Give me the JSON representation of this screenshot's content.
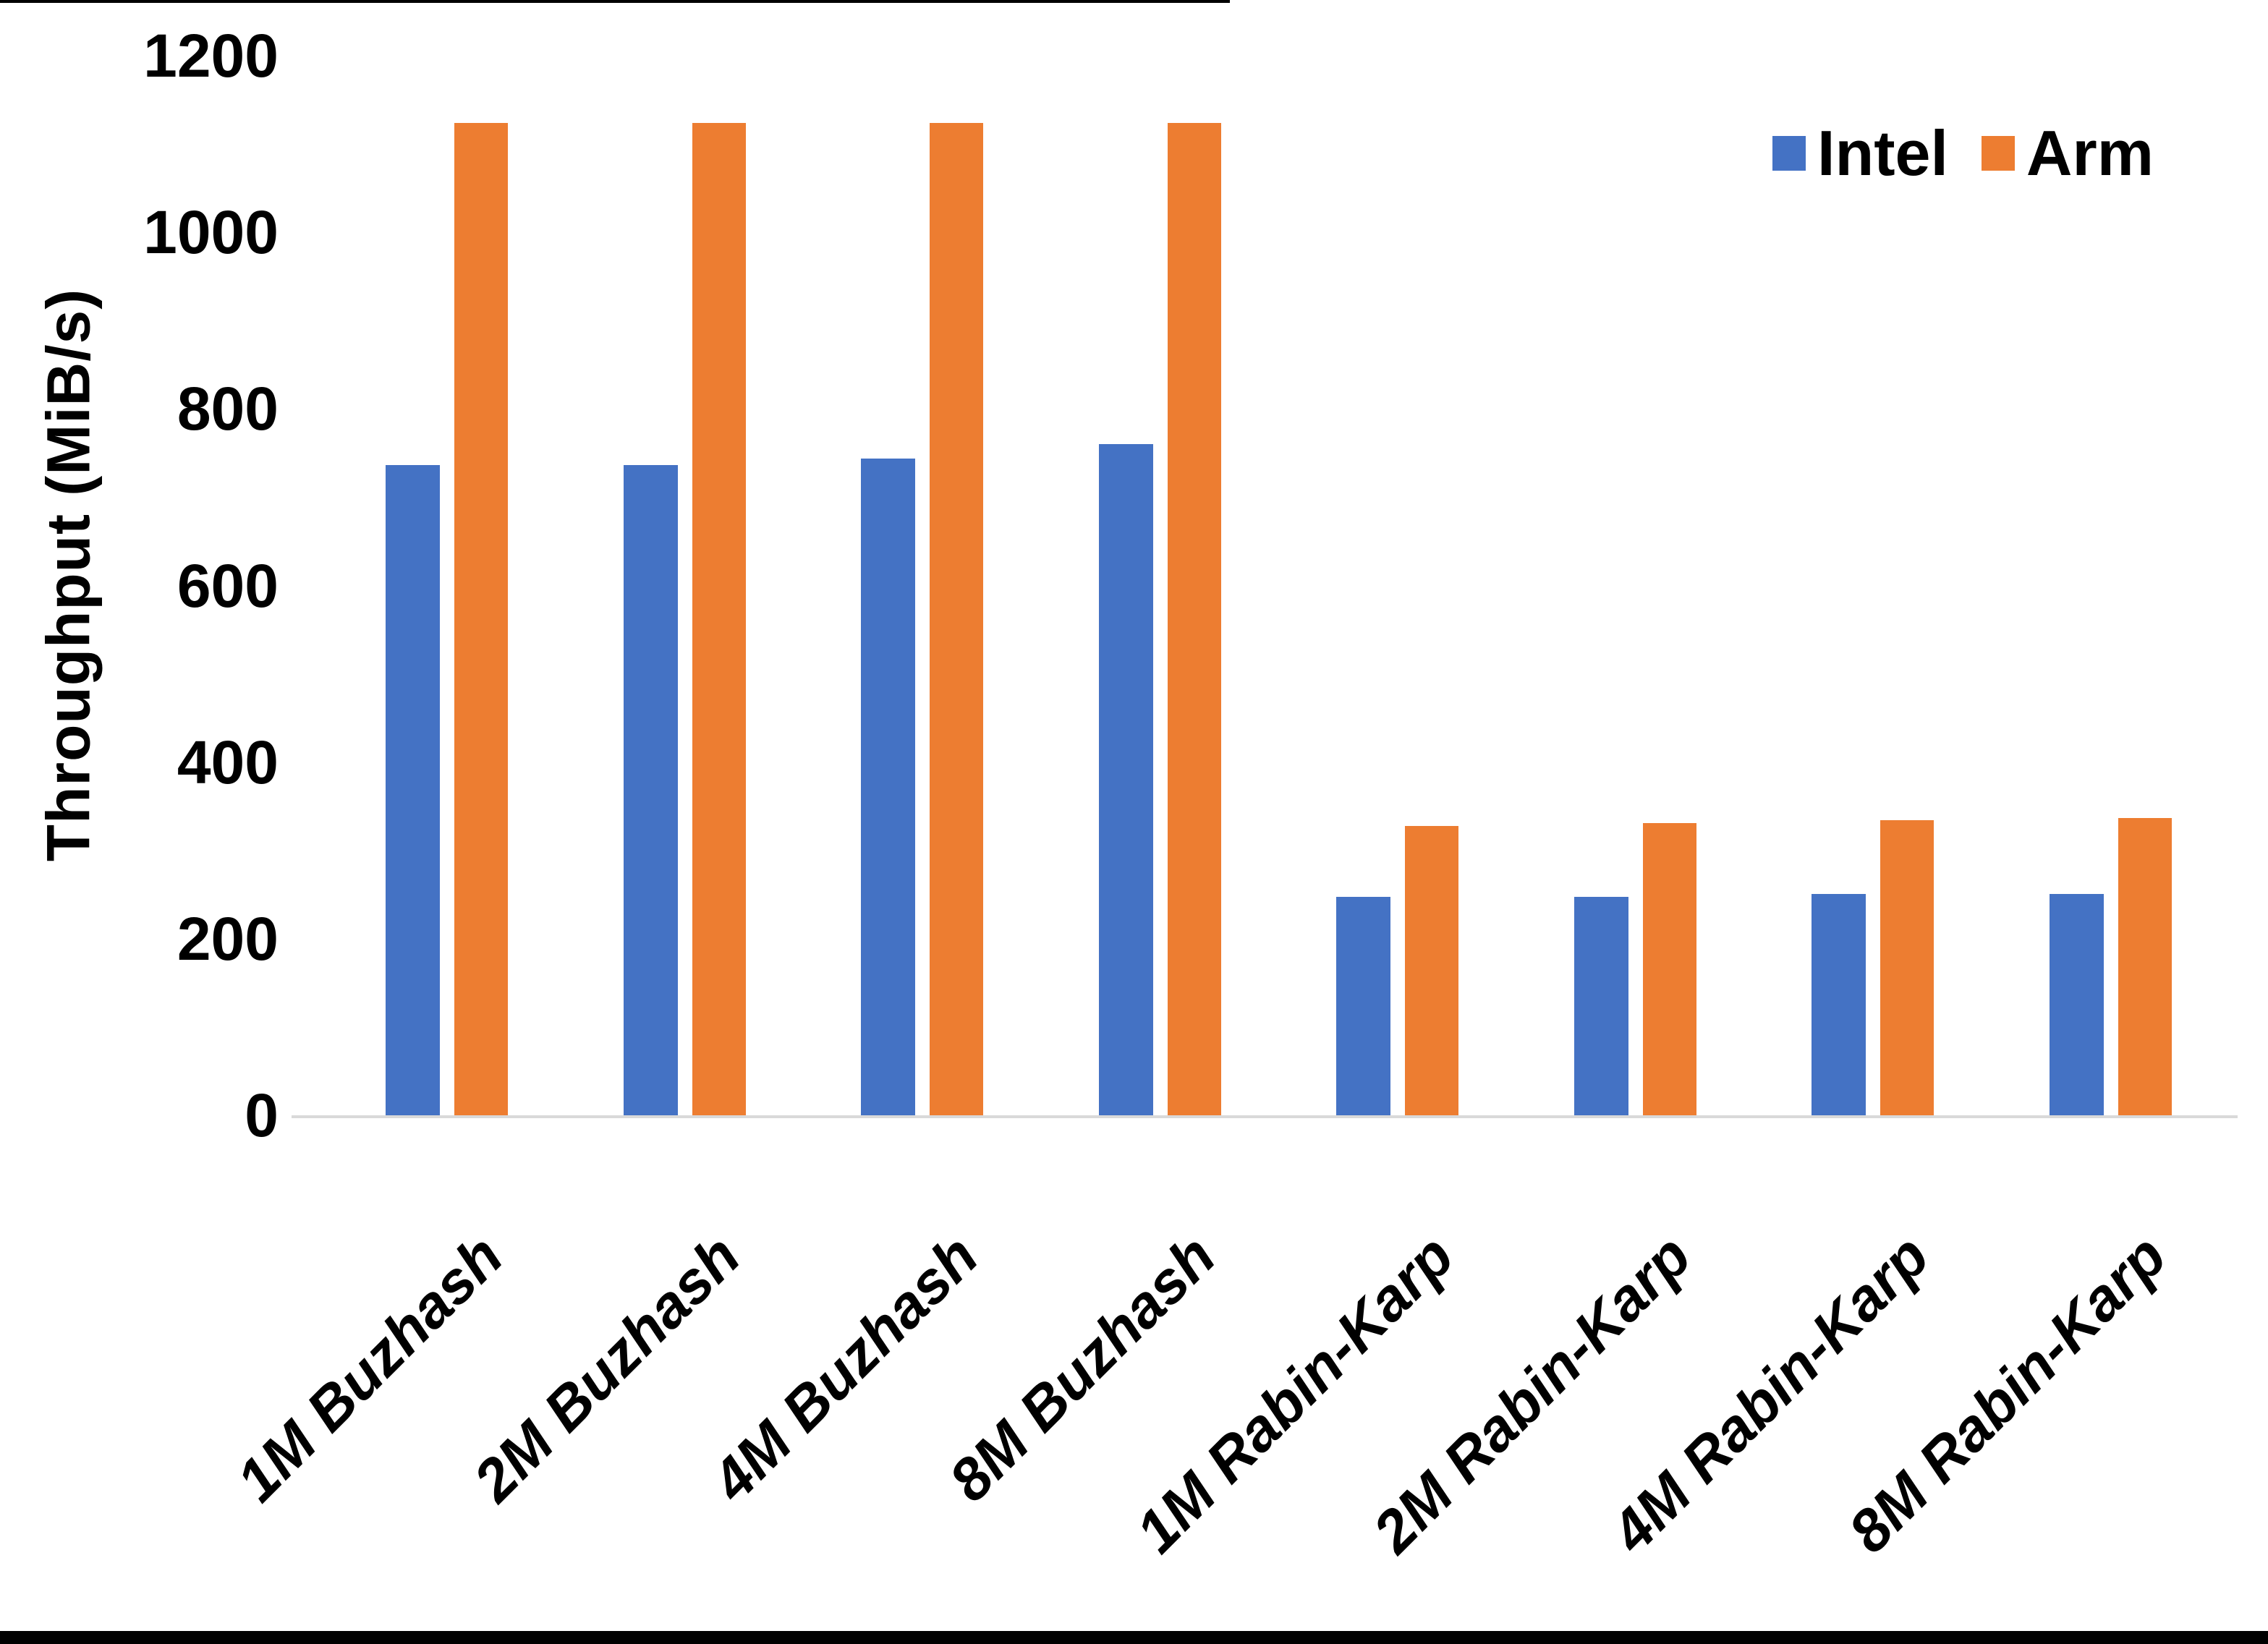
{
  "chart_data": {
    "type": "bar",
    "title": "",
    "ylabel": "Throughput (MiB/s)",
    "xlabel": "",
    "ylim": [
      0,
      1200
    ],
    "yticks": [
      0,
      200,
      400,
      600,
      800,
      1000,
      1200
    ],
    "grid": false,
    "legend_position": "top-right",
    "categories": [
      "1M Buzhash",
      "2M Buzhash",
      "4M Buzhash",
      "8M Buzhash",
      "1M Rabin-Karp",
      "2M Rabin-Karp",
      "4M Rabin-Karp",
      "8M Rabin-Karp"
    ],
    "series": [
      {
        "name": "Intel",
        "color": "#4472C4",
        "values": [
          736,
          736,
          744,
          760,
          247,
          247,
          251,
          251
        ]
      },
      {
        "name": "Arm",
        "color": "#ED7D31",
        "values": [
          1124,
          1124,
          1124,
          1124,
          328,
          331,
          334,
          337
        ]
      }
    ]
  },
  "colors": {
    "axis_line": "#d9d9d9",
    "text": "#000000",
    "background": "#ffffff"
  }
}
